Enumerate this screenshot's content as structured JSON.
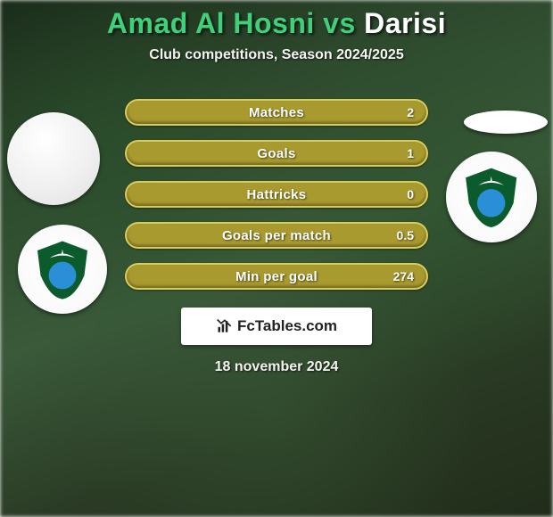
{
  "title": {
    "left": "Amad Al Hosni",
    "vs": " vs ",
    "right": "Darisi",
    "color_left": "#3fd07a",
    "color_right": "#ffffff",
    "fontsize": 32
  },
  "subtitle": "Club competitions, Season 2024/2025",
  "stats": {
    "pill_width": 340,
    "pill_height": 30,
    "pill_fill": "#a99a2f",
    "pill_border": "#d8cc5a",
    "label_color": "#ffffff",
    "value_color": "#ffffff",
    "rows": [
      {
        "label": "Matches",
        "value": "2"
      },
      {
        "label": "Goals",
        "value": "1"
      },
      {
        "label": "Hattricks",
        "value": "0"
      },
      {
        "label": "Goals per match",
        "value": "0.5"
      },
      {
        "label": "Min per goal",
        "value": "274"
      }
    ]
  },
  "brand": {
    "text": "FcTables.com",
    "box_bg": "#ffffff",
    "text_color": "#222222",
    "icon_color": "#222222"
  },
  "date": "18 november 2024",
  "background": {
    "gradient_stops": [
      "#1a2a1a",
      "#2e4a2e",
      "#3a5a3a",
      "#2a3a24",
      "#212d1a"
    ]
  },
  "badges": {
    "crest_colors": {
      "shield": "#0b5b2d",
      "globe": "#2a8fd6",
      "accent": "#ffffff"
    }
  }
}
